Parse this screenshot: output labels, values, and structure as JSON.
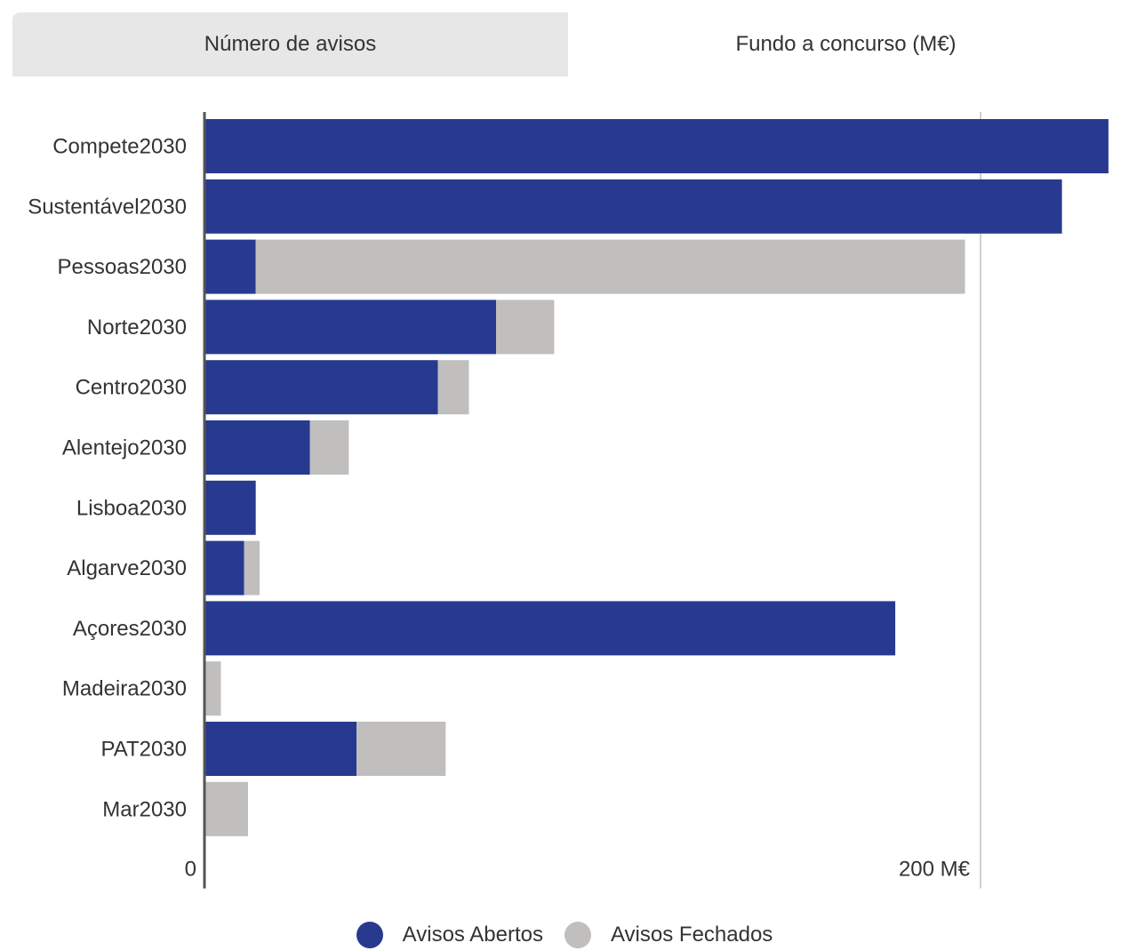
{
  "tabs": [
    {
      "label": "Número de avisos",
      "active": false
    },
    {
      "label": "Fundo a concurso (M€)",
      "active": true
    }
  ],
  "colors": {
    "open": "#283a8f",
    "closed": "#c0bfbe",
    "tab_bg": "#e7e7e7",
    "grid": "#d0d0d0",
    "axis": "#555555"
  },
  "chart_data": {
    "type": "bar",
    "orientation": "horizontal",
    "stacked": true,
    "categories": [
      "Compete2030",
      "Sustentável2030",
      "Pessoas2030",
      "Norte2030",
      "Centro2030",
      "Alentejo2030",
      "Lisboa2030",
      "Algarve2030",
      "Açores2030",
      "Madeira2030",
      "PAT2030",
      "Mar2030"
    ],
    "series": [
      {
        "name": "Avisos Abertos",
        "color": "#283a8f",
        "values": [
          233,
          221,
          13,
          75,
          60,
          27,
          13,
          10,
          178,
          0,
          39,
          0
        ]
      },
      {
        "name": "Avisos Fechados",
        "color": "#c0bfbe",
        "values": [
          0,
          0,
          183,
          15,
          8,
          10,
          0,
          4,
          0,
          4,
          23,
          11
        ]
      }
    ],
    "xlim": [
      0,
      230
    ],
    "x_ticks": [
      {
        "value": 0,
        "label": "0"
      },
      {
        "value": 200,
        "label": "200 M€"
      }
    ],
    "grid": true,
    "legend_position": "bottom"
  }
}
